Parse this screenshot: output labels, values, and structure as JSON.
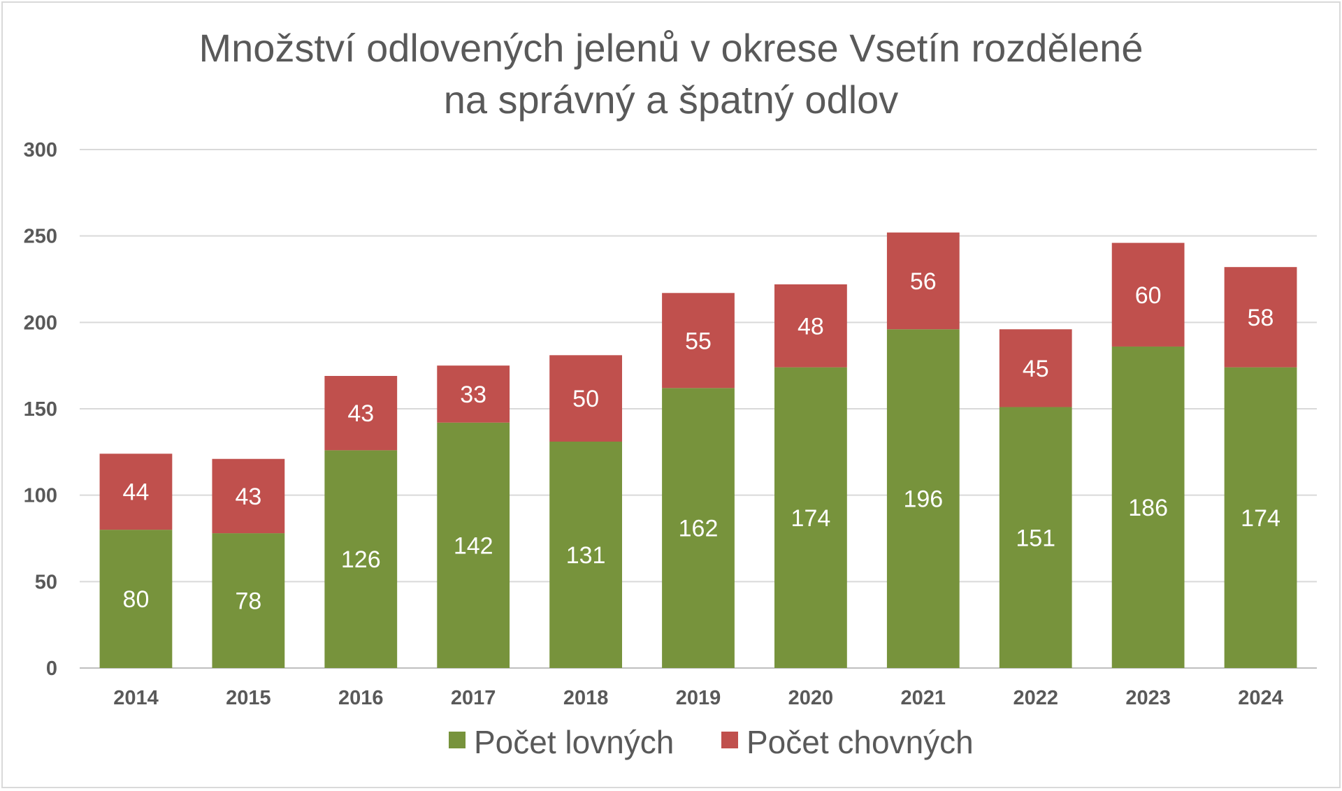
{
  "chart_data": {
    "type": "bar",
    "stacked": true,
    "title_lines": [
      "Množství odlovených jelenů v okrese Vsetín rozdělené",
      "na správný a špatný odlov"
    ],
    "categories": [
      "2014",
      "2015",
      "2016",
      "2017",
      "2018",
      "2019",
      "2020",
      "2021",
      "2022",
      "2023",
      "2024"
    ],
    "series": [
      {
        "name": "Počet lovných",
        "color": "#77933c",
        "values": [
          80,
          78,
          126,
          142,
          131,
          162,
          174,
          196,
          151,
          186,
          174
        ]
      },
      {
        "name": "Počet chovných",
        "color": "#c0504d",
        "values": [
          44,
          43,
          43,
          33,
          50,
          55,
          48,
          56,
          45,
          60,
          58
        ]
      }
    ],
    "ylim": [
      0,
      300
    ],
    "yticks": [
      "0",
      "50",
      "100",
      "150",
      "200",
      "250",
      "300"
    ],
    "grid": true,
    "legend": "bottom",
    "data_labels": true
  }
}
